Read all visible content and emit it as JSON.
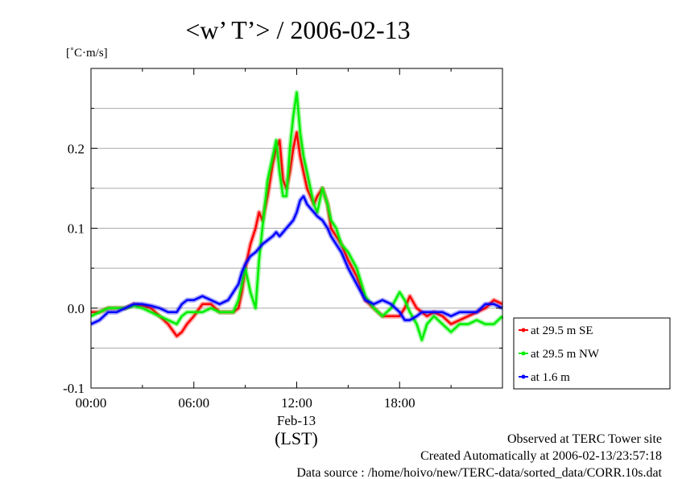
{
  "chart_data": {
    "type": "line",
    "title": "<w’ T’> / 2006-02-13",
    "yunit": "[˚C·m/s]",
    "xlabel": "(LST)",
    "date_label": "Feb-13",
    "xlim": [
      0,
      24
    ],
    "ylim": [
      -0.1,
      0.3
    ],
    "x_ticks": [
      {
        "x": 0,
        "label": "00:00"
      },
      {
        "x": 6,
        "label": "06:00"
      },
      {
        "x": 12,
        "label": "12:00"
      },
      {
        "x": 18,
        "label": "18:00"
      }
    ],
    "y_ticks": [
      {
        "y": -0.1,
        "label": "-0.1"
      },
      {
        "y": 0.0,
        "label": "0.0"
      },
      {
        "y": 0.1,
        "label": "0.1"
      },
      {
        "y": 0.2,
        "label": "0.2"
      }
    ],
    "grid": true,
    "legend_position": "right, outside",
    "series": [
      {
        "name": "at 29.5 m SE",
        "color": "#ff0000",
        "x": [
          0,
          0.5,
          1,
          1.5,
          2,
          2.5,
          3,
          3.5,
          4,
          4.5,
          5,
          5.3,
          5.6,
          6,
          6.5,
          7,
          7.5,
          8,
          8.3,
          8.6,
          8.8,
          9,
          9.3,
          9.6,
          9.8,
          10,
          10.3,
          10.6,
          10.8,
          11,
          11.2,
          11.4,
          11.6,
          11.8,
          12,
          12.2,
          12.4,
          12.6,
          12.8,
          13,
          13.2,
          13.5,
          13.8,
          14,
          14.3,
          14.6,
          15,
          15.5,
          16,
          16.5,
          17,
          17.5,
          18,
          18.3,
          18.6,
          19,
          19.3,
          19.6,
          20,
          20.5,
          21,
          21.5,
          22,
          22.5,
          23,
          23.5,
          24
        ],
        "y": [
          -0.005,
          -0.005,
          0,
          0,
          0,
          0.005,
          0.003,
          0,
          -0.01,
          -0.02,
          -0.035,
          -0.03,
          -0.02,
          -0.01,
          0.005,
          0.005,
          -0.005,
          -0.005,
          -0.005,
          0.0,
          0.02,
          0.05,
          0.08,
          0.1,
          0.12,
          0.11,
          0.14,
          0.18,
          0.2,
          0.21,
          0.16,
          0.15,
          0.17,
          0.2,
          0.22,
          0.19,
          0.17,
          0.15,
          0.14,
          0.13,
          0.14,
          0.15,
          0.13,
          0.1,
          0.09,
          0.08,
          0.06,
          0.04,
          0.01,
          0.0,
          -0.01,
          -0.01,
          -0.01,
          0.0,
          0.015,
          0.0,
          -0.005,
          -0.01,
          -0.005,
          -0.01,
          -0.02,
          -0.015,
          -0.01,
          -0.005,
          0.0,
          0.01,
          0.005
        ]
      },
      {
        "name": "at 29.5 m NW",
        "color": "#00ee00",
        "x": [
          0,
          0.5,
          1,
          1.5,
          2,
          2.5,
          3,
          3.5,
          4,
          4.5,
          5,
          5.3,
          5.6,
          6,
          6.5,
          7,
          7.5,
          8,
          8.3,
          8.6,
          8.8,
          9,
          9.3,
          9.6,
          9.8,
          10,
          10.3,
          10.6,
          10.8,
          11,
          11.2,
          11.4,
          11.6,
          11.8,
          12,
          12.2,
          12.4,
          12.6,
          12.8,
          13,
          13.2,
          13.5,
          13.8,
          14,
          14.3,
          14.6,
          15,
          15.5,
          16,
          16.5,
          17,
          17.5,
          18,
          18.3,
          18.6,
          19,
          19.3,
          19.6,
          20,
          20.5,
          21,
          21.5,
          22,
          22.5,
          23,
          23.5,
          24
        ],
        "y": [
          -0.01,
          -0.005,
          0,
          0,
          0,
          0.003,
          0,
          -0.005,
          -0.01,
          -0.015,
          -0.02,
          -0.01,
          -0.005,
          -0.005,
          -0.005,
          0,
          -0.005,
          -0.005,
          -0.005,
          0.01,
          0.03,
          0.05,
          0.02,
          0.0,
          0.06,
          0.1,
          0.16,
          0.19,
          0.21,
          0.17,
          0.14,
          0.14,
          0.2,
          0.24,
          0.27,
          0.22,
          0.19,
          0.17,
          0.15,
          0.13,
          0.12,
          0.15,
          0.13,
          0.11,
          0.1,
          0.08,
          0.07,
          0.05,
          0.015,
          0.0,
          -0.01,
          0.0,
          0.02,
          0.01,
          -0.005,
          -0.02,
          -0.04,
          -0.02,
          -0.01,
          -0.02,
          -0.03,
          -0.02,
          -0.02,
          -0.015,
          -0.02,
          -0.02,
          -0.01
        ]
      },
      {
        "name": "at 1.6 m",
        "color": "#0000ff",
        "x": [
          0,
          0.5,
          1,
          1.5,
          2,
          2.5,
          3,
          3.5,
          4,
          4.5,
          5,
          5.3,
          5.6,
          6,
          6.5,
          7,
          7.5,
          8,
          8.3,
          8.6,
          8.8,
          9,
          9.3,
          9.6,
          9.8,
          10,
          10.3,
          10.6,
          10.8,
          11,
          11.2,
          11.4,
          11.6,
          11.8,
          12,
          12.2,
          12.4,
          12.6,
          12.8,
          13,
          13.2,
          13.5,
          13.8,
          14,
          14.3,
          14.6,
          15,
          15.5,
          16,
          16.5,
          17,
          17.5,
          18,
          18.3,
          18.6,
          19,
          19.3,
          19.6,
          20,
          20.5,
          21,
          21.5,
          22,
          22.5,
          23,
          23.5,
          24
        ],
        "y": [
          -0.02,
          -0.015,
          -0.005,
          -0.005,
          0,
          0.005,
          0.005,
          0.003,
          0,
          -0.005,
          -0.005,
          0.005,
          0.01,
          0.01,
          0.015,
          0.01,
          0.005,
          0.01,
          0.02,
          0.03,
          0.045,
          0.055,
          0.065,
          0.07,
          0.075,
          0.08,
          0.085,
          0.09,
          0.095,
          0.09,
          0.095,
          0.1,
          0.105,
          0.11,
          0.12,
          0.135,
          0.14,
          0.13,
          0.125,
          0.12,
          0.115,
          0.11,
          0.1,
          0.09,
          0.08,
          0.07,
          0.05,
          0.03,
          0.01,
          0.005,
          0.01,
          0.005,
          -0.005,
          -0.015,
          -0.015,
          -0.01,
          -0.005,
          -0.005,
          -0.005,
          -0.005,
          -0.01,
          -0.005,
          -0.005,
          -0.005,
          0.005,
          0.005,
          0.0
        ]
      }
    ]
  },
  "footer": {
    "line1": "Observed at TERC Tower site",
    "line2": "Created Automatically at 2006-02-13/23:57:18",
    "line3": "Data source : /home/hoivo/new/TERC-data/sorted_data/CORR.10s.dat"
  }
}
